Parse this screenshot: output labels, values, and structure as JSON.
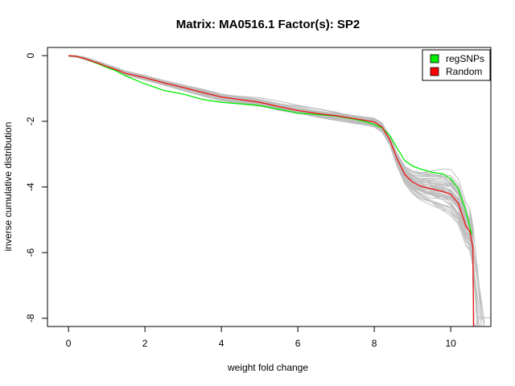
{
  "chart_data": {
    "type": "line",
    "title": "Matrix: MA0516.1 Factor(s): SP2",
    "xlabel": "weight fold change",
    "ylabel": "inverse cumulative distribution",
    "xlim": [
      -0.55,
      11.05
    ],
    "ylim": [
      -8.25,
      0.25
    ],
    "x_ticks": [
      0,
      2,
      4,
      6,
      8,
      10
    ],
    "x_tick_labels": [
      "0",
      "2",
      "4",
      "6",
      "8",
      "10"
    ],
    "y_ticks": [
      0,
      -2,
      -4,
      -6,
      -8
    ],
    "y_tick_labels": [
      "0",
      "-2",
      "-4",
      "-6",
      "-8"
    ],
    "grid": false,
    "legend": {
      "position": "top-right",
      "entries": [
        {
          "label": "regSNPs",
          "color": "#00ee00"
        },
        {
          "label": "Random",
          "color": "#ff0000"
        }
      ]
    },
    "colors": {
      "regSNPs": "#00ee00",
      "Random": "#ee1111",
      "background_runs": "#bebebe"
    },
    "series": [
      {
        "name": "regSNPs",
        "x": [
          0,
          0.2,
          0.4,
          0.6,
          0.8,
          1.0,
          1.2,
          1.5,
          2.0,
          2.5,
          3.0,
          3.5,
          4.0,
          4.5,
          5.0,
          5.5,
          6.0,
          6.5,
          7.0,
          7.5,
          7.8,
          8.0,
          8.2,
          8.4,
          8.6,
          8.8,
          9.0,
          9.2,
          9.5,
          9.8,
          10.0,
          10.2,
          10.4,
          10.55
        ],
        "values": [
          0,
          -0.02,
          -0.08,
          -0.17,
          -0.26,
          -0.36,
          -0.44,
          -0.62,
          -0.86,
          -1.06,
          -1.17,
          -1.33,
          -1.42,
          -1.47,
          -1.52,
          -1.63,
          -1.75,
          -1.79,
          -1.84,
          -1.94,
          -2.02,
          -2.1,
          -2.2,
          -2.42,
          -2.82,
          -3.2,
          -3.36,
          -3.45,
          -3.55,
          -3.6,
          -3.75,
          -4.05,
          -4.75,
          -5.45
        ]
      },
      {
        "name": "Random",
        "x": [
          0,
          0.2,
          0.4,
          0.6,
          0.8,
          1.0,
          1.2,
          1.5,
          2.0,
          2.5,
          3.0,
          3.5,
          4.0,
          4.5,
          5.0,
          5.5,
          6.0,
          6.5,
          7.0,
          7.5,
          7.8,
          8.0,
          8.2,
          8.4,
          8.6,
          8.8,
          9.0,
          9.2,
          9.5,
          9.8,
          10.0,
          10.2,
          10.4,
          10.5,
          10.58,
          10.6
        ],
        "values": [
          0,
          -0.02,
          -0.08,
          -0.16,
          -0.24,
          -0.33,
          -0.41,
          -0.54,
          -0.67,
          -0.83,
          -0.97,
          -1.12,
          -1.26,
          -1.34,
          -1.42,
          -1.55,
          -1.67,
          -1.76,
          -1.83,
          -1.92,
          -1.98,
          -2.02,
          -2.17,
          -2.55,
          -3.15,
          -3.62,
          -3.85,
          -3.97,
          -4.06,
          -4.14,
          -4.22,
          -4.5,
          -5.2,
          -5.35,
          -5.85,
          -8.3
        ]
      }
    ]
  }
}
